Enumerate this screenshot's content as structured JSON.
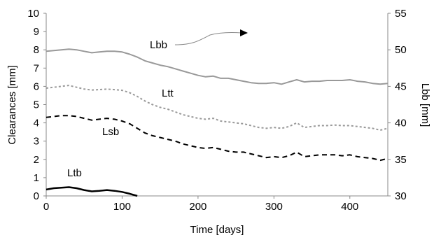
{
  "chart_data": {
    "type": "line",
    "xlabel": "Time [days]",
    "ylabel_left": "Clearances [mm]",
    "ylabel_right": "Lbb [mm]",
    "xlim": [
      0,
      450
    ],
    "ylim_left": [
      0,
      10
    ],
    "ylim_right": [
      30,
      55
    ],
    "x_ticks": [
      "0",
      "100",
      "200",
      "300",
      "400"
    ],
    "y_left_ticks": [
      "0",
      "1",
      "2",
      "3",
      "4",
      "5",
      "6",
      "7",
      "8",
      "9",
      "10"
    ],
    "y_right_ticks": [
      "30",
      "35",
      "40",
      "45",
      "50",
      "55"
    ],
    "grid": false,
    "series": [
      {
        "name": "Lbb",
        "axis": "right",
        "color": "#999999",
        "style": "solid",
        "x": [
          0,
          10,
          20,
          30,
          40,
          50,
          60,
          70,
          80,
          90,
          100,
          110,
          120,
          130,
          140,
          150,
          160,
          170,
          180,
          190,
          200,
          210,
          220,
          230,
          240,
          250,
          260,
          270,
          280,
          290,
          300,
          310,
          320,
          330,
          340,
          350,
          360,
          370,
          380,
          390,
          400,
          410,
          420,
          430,
          440,
          450
        ],
        "values": [
          49.8,
          49.9,
          50.0,
          50.1,
          50.0,
          49.8,
          49.6,
          49.7,
          49.8,
          49.8,
          49.7,
          49.4,
          49.0,
          48.5,
          48.2,
          47.9,
          47.7,
          47.4,
          47.1,
          46.8,
          46.5,
          46.3,
          46.4,
          46.1,
          46.1,
          45.9,
          45.7,
          45.5,
          45.4,
          45.4,
          45.5,
          45.3,
          45.6,
          45.9,
          45.6,
          45.7,
          45.7,
          45.8,
          45.8,
          45.8,
          45.9,
          45.7,
          45.6,
          45.4,
          45.3,
          45.4
        ]
      },
      {
        "name": "Ltt",
        "axis": "left",
        "color": "#999999",
        "style": "dotted",
        "x": [
          0,
          10,
          20,
          30,
          40,
          50,
          60,
          70,
          80,
          90,
          100,
          110,
          120,
          130,
          140,
          150,
          160,
          170,
          180,
          190,
          200,
          210,
          220,
          230,
          240,
          250,
          260,
          270,
          280,
          290,
          300,
          310,
          320,
          330,
          340,
          350,
          360,
          370,
          380,
          390,
          400,
          410,
          420,
          430,
          440,
          450
        ],
        "values": [
          5.9,
          5.95,
          6.0,
          6.05,
          5.95,
          5.85,
          5.8,
          5.82,
          5.85,
          5.82,
          5.78,
          5.65,
          5.45,
          5.2,
          5.0,
          4.85,
          4.75,
          4.6,
          4.45,
          4.35,
          4.25,
          4.2,
          4.25,
          4.1,
          4.05,
          4.0,
          3.95,
          3.85,
          3.75,
          3.7,
          3.75,
          3.7,
          3.8,
          4.0,
          3.75,
          3.8,
          3.85,
          3.85,
          3.88,
          3.85,
          3.85,
          3.8,
          3.75,
          3.7,
          3.6,
          3.7
        ]
      },
      {
        "name": "Lsb",
        "axis": "left",
        "color": "#000000",
        "style": "dashed",
        "x": [
          0,
          10,
          20,
          30,
          40,
          50,
          60,
          70,
          80,
          90,
          100,
          110,
          120,
          130,
          140,
          150,
          160,
          170,
          180,
          190,
          200,
          210,
          220,
          230,
          240,
          250,
          260,
          270,
          280,
          290,
          300,
          310,
          320,
          330,
          340,
          350,
          360,
          370,
          380,
          390,
          400,
          410,
          420,
          430,
          440,
          450
        ],
        "values": [
          4.3,
          4.35,
          4.4,
          4.4,
          4.35,
          4.25,
          4.15,
          4.2,
          4.25,
          4.2,
          4.1,
          3.95,
          3.7,
          3.45,
          3.3,
          3.2,
          3.1,
          3.0,
          2.85,
          2.75,
          2.65,
          2.6,
          2.65,
          2.55,
          2.45,
          2.4,
          2.4,
          2.3,
          2.2,
          2.1,
          2.15,
          2.1,
          2.2,
          2.4,
          2.15,
          2.2,
          2.25,
          2.25,
          2.25,
          2.2,
          2.25,
          2.15,
          2.1,
          2.05,
          1.95,
          2.05
        ]
      },
      {
        "name": "Ltb",
        "axis": "left",
        "color": "#000000",
        "style": "solid",
        "x": [
          0,
          10,
          20,
          30,
          40,
          50,
          60,
          70,
          80,
          90,
          100,
          110,
          120
        ],
        "values": [
          0.35,
          0.42,
          0.45,
          0.48,
          0.42,
          0.32,
          0.25,
          0.28,
          0.32,
          0.28,
          0.22,
          0.12,
          0.0
        ]
      }
    ],
    "annotations": [
      {
        "text": "Lbb",
        "type": "arrow-label",
        "series": "Lbb",
        "direction": "right"
      },
      {
        "text": "Ltt",
        "series": "Ltt"
      },
      {
        "text": "Lsb",
        "series": "Lsb"
      },
      {
        "text": "Ltb",
        "series": "Ltb"
      }
    ]
  }
}
